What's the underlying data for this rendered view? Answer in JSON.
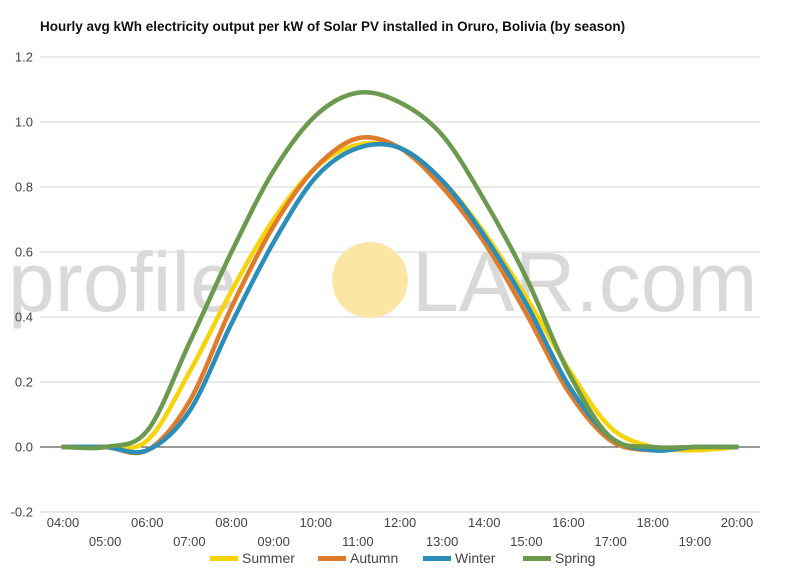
{
  "chart_data": {
    "type": "line",
    "title": "Hourly avg kWh electricity output per kW of Solar PV installed in Oruro, Bolivia (by season)",
    "x": [
      "04:00",
      "05:00",
      "06:00",
      "07:00",
      "08:00",
      "09:00",
      "10:00",
      "11:00",
      "12:00",
      "13:00",
      "14:00",
      "15:00",
      "16:00",
      "17:00",
      "18:00",
      "19:00",
      "20:00"
    ],
    "ylim": [
      -0.2,
      1.2
    ],
    "yticks": [
      "-0.2",
      "0.0",
      "0.2",
      "0.4",
      "0.6",
      "0.8",
      "1.0",
      "1.2"
    ],
    "grid": true,
    "legend_position": "bottom",
    "series": [
      {
        "name": "Summer",
        "color": "#f7d40a",
        "values": [
          0.0,
          0.0,
          0.02,
          0.23,
          0.48,
          0.7,
          0.86,
          0.93,
          0.92,
          0.82,
          0.66,
          0.46,
          0.24,
          0.06,
          0.0,
          -0.01,
          0.0
        ]
      },
      {
        "name": "Autumn",
        "color": "#e07b29",
        "values": [
          0.0,
          0.0,
          -0.01,
          0.14,
          0.43,
          0.68,
          0.86,
          0.95,
          0.92,
          0.8,
          0.63,
          0.41,
          0.17,
          0.02,
          -0.01,
          0.0,
          0.0
        ]
      },
      {
        "name": "Winter",
        "color": "#2a8dba",
        "values": [
          0.0,
          0.0,
          -0.01,
          0.11,
          0.38,
          0.63,
          0.83,
          0.92,
          0.92,
          0.82,
          0.65,
          0.44,
          0.19,
          0.03,
          -0.01,
          0.0,
          0.0
        ]
      },
      {
        "name": "Spring",
        "color": "#6b9a4e",
        "values": [
          0.0,
          0.0,
          0.05,
          0.32,
          0.6,
          0.85,
          1.02,
          1.09,
          1.06,
          0.96,
          0.76,
          0.52,
          0.23,
          0.03,
          0.0,
          0.0,
          0.0
        ]
      }
    ]
  },
  "watermark": {
    "text_left": "profile",
    "text_right": "LAR.com",
    "sun_color": "#fbe6a6"
  }
}
